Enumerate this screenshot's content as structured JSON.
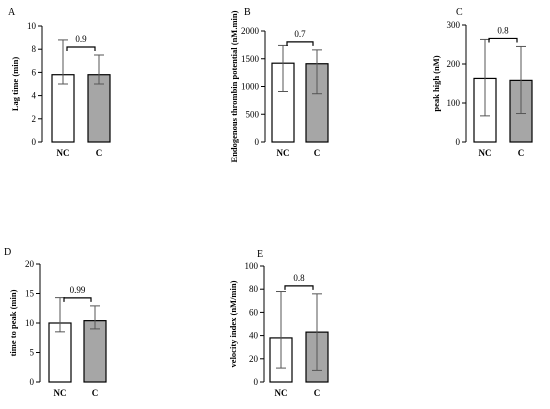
{
  "chart_data": [
    {
      "type": "bar",
      "panel_label": "A",
      "categories": [
        "NC",
        "C"
      ],
      "values": [
        5.8,
        5.8
      ],
      "error_upper": [
        8.8,
        7.5
      ],
      "error_lower": [
        5.0,
        5.0
      ],
      "bar_colors": [
        "#ffffff",
        "#a6a6a6"
      ],
      "ylabel": "Lag time (min)",
      "ylim": [
        0,
        10
      ],
      "yticks": [
        0,
        2,
        4,
        6,
        8,
        10
      ],
      "p_value": "0.9"
    },
    {
      "type": "bar",
      "panel_label": "B",
      "categories": [
        "NC",
        "C"
      ],
      "values": [
        1420,
        1410
      ],
      "error_upper": [
        1740,
        1660
      ],
      "error_lower": [
        910,
        870
      ],
      "bar_colors": [
        "#ffffff",
        "#a6a6a6"
      ],
      "ylabel": "Endogenous thrombin potential (nM.min)",
      "ylim": [
        0,
        2000
      ],
      "yticks": [
        0,
        500,
        1000,
        1500,
        2000
      ],
      "p_value": "0.7"
    },
    {
      "type": "bar",
      "panel_label": "C",
      "categories": [
        "NC",
        "C"
      ],
      "values": [
        163,
        158
      ],
      "error_upper": [
        263,
        245
      ],
      "error_lower": [
        67,
        73
      ],
      "bar_colors": [
        "#ffffff",
        "#a6a6a6"
      ],
      "ylabel": "peak high (nM)",
      "ylim": [
        0,
        300
      ],
      "yticks": [
        0,
        100,
        200,
        300
      ],
      "p_value": "0.8"
    },
    {
      "type": "bar",
      "panel_label": "D",
      "categories": [
        "NC",
        "C"
      ],
      "values": [
        10.0,
        10.4
      ],
      "error_upper": [
        14.3,
        12.9
      ],
      "error_lower": [
        8.5,
        9.0
      ],
      "bar_colors": [
        "#ffffff",
        "#a6a6a6"
      ],
      "ylabel": "time to peak (min)",
      "ylim": [
        0,
        20
      ],
      "yticks": [
        0,
        5,
        10,
        15,
        20
      ],
      "p_value": "0.99"
    },
    {
      "type": "bar",
      "panel_label": "E",
      "categories": [
        "NC",
        "C"
      ],
      "values": [
        38,
        43
      ],
      "error_upper": [
        78,
        76
      ],
      "error_lower": [
        12,
        10
      ],
      "bar_colors": [
        "#ffffff",
        "#a6a6a6"
      ],
      "ylabel": "velocity index (nM/min)",
      "ylim": [
        0,
        100
      ],
      "yticks": [
        0,
        20,
        40,
        60,
        80,
        100
      ],
      "p_value": "0.8"
    }
  ]
}
